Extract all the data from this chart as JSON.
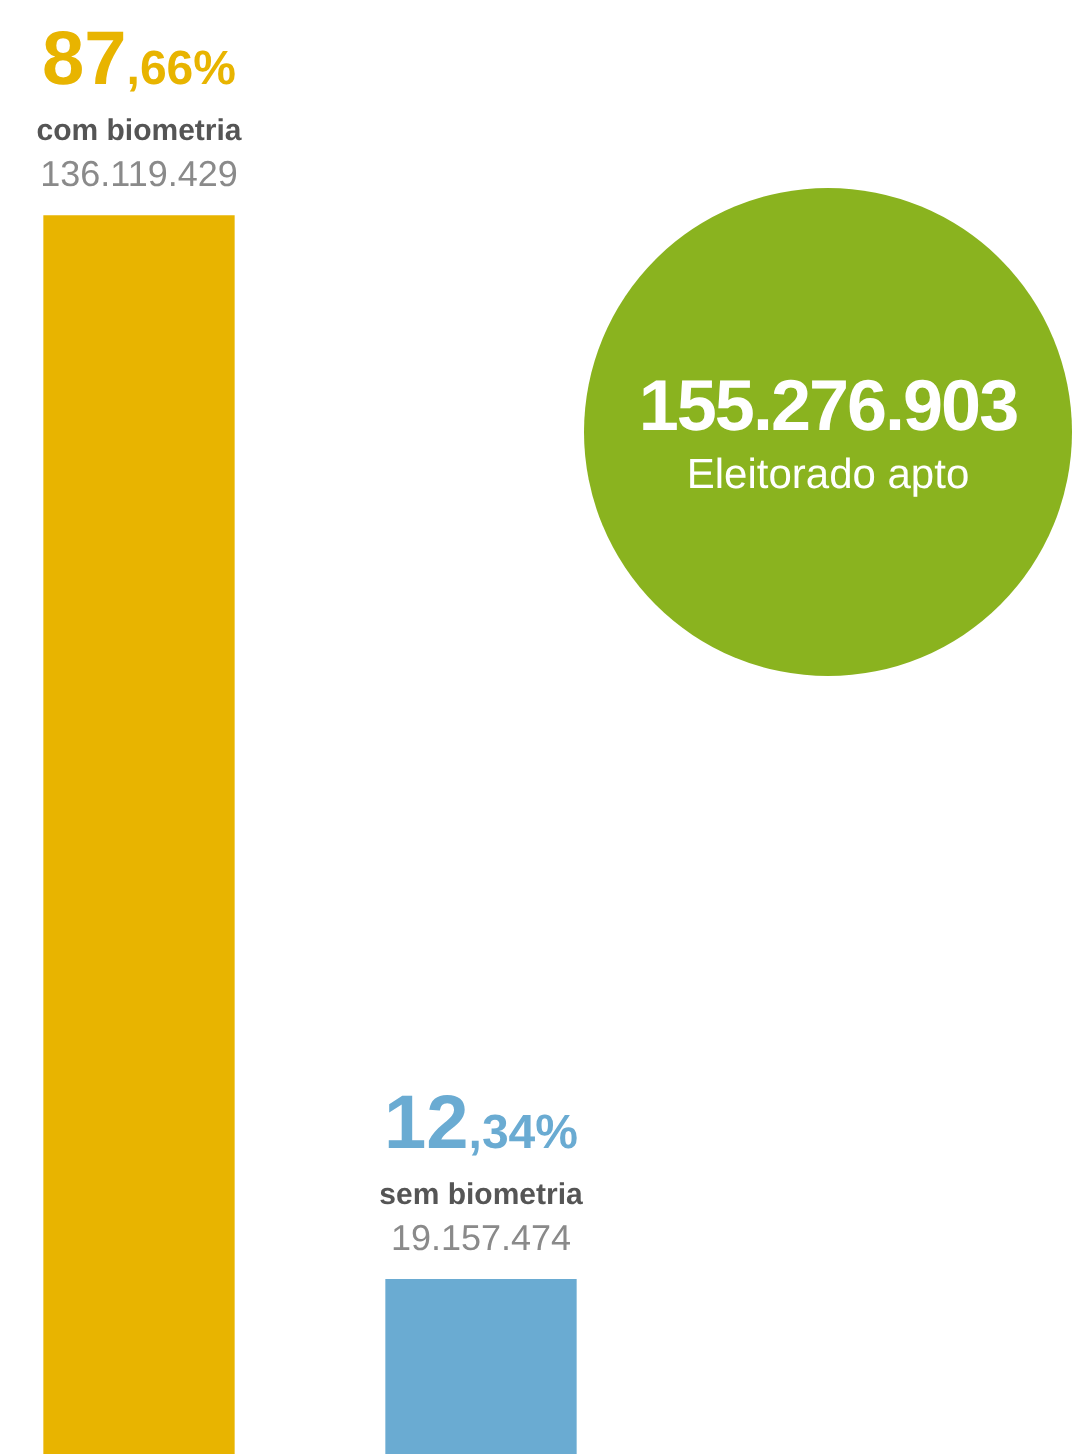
{
  "chart_data": {
    "type": "bar",
    "categories": [
      "com biometria",
      "sem biometria"
    ],
    "series": [
      {
        "colors": [
          "#e8b400",
          "#6aabd2"
        ],
        "values": [
          136119429,
          19157474
        ],
        "value_labels": [
          "136.119.429",
          "19.157.474"
        ]
      }
    ],
    "annotations": [
      {
        "text": "87,66%",
        "x": "com biometria",
        "y": 136119429
      },
      {
        "text": "12,34%",
        "x": "sem biometria",
        "y": 19157474
      },
      "155.276.903",
      "Eleitorado apto"
    ],
    "legend": false
  }
}
